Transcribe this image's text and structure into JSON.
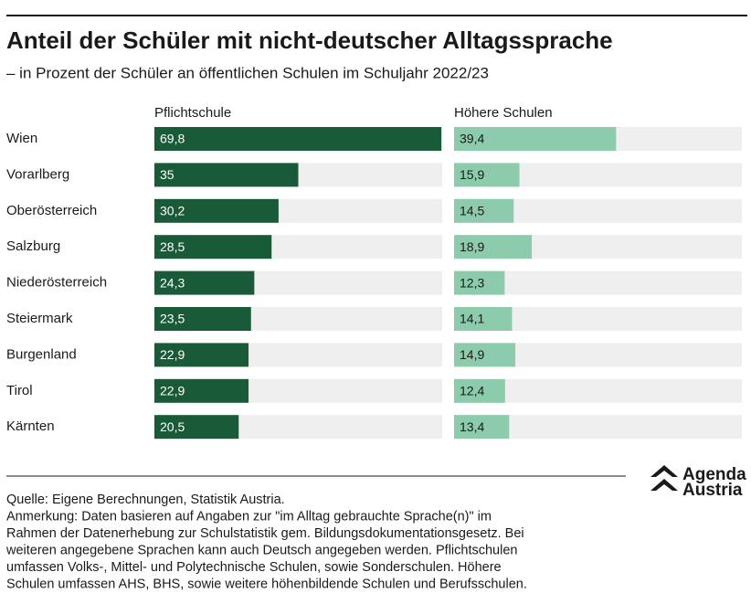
{
  "chart_data": {
    "type": "bar",
    "orientation": "horizontal",
    "title": "Anteil der Schüler mit nicht-deutscher Alltagssprache",
    "subtitle": "– in Prozent der Schüler an öffentlichen Schulen im Schuljahr 2022/23",
    "categories": [
      "Wien",
      "Vorarlberg",
      "Oberösterreich",
      "Salzburg",
      "Niederösterreich",
      "Steiermark",
      "Burgenland",
      "Tirol",
      "Kärnten"
    ],
    "series": [
      {
        "name": "Pflichtschule",
        "color": "#195b38",
        "values": [
          69.8,
          35,
          30.2,
          28.5,
          24.3,
          23.5,
          22.9,
          22.9,
          20.5
        ],
        "value_labels": [
          "69,8",
          "35",
          "30,2",
          "28,5",
          "24,3",
          "23,5",
          "22,9",
          "22,9",
          "20,5"
        ]
      },
      {
        "name": "Höhere Schulen",
        "color": "#8ccbab",
        "values": [
          39.4,
          15.9,
          14.5,
          18.9,
          12.3,
          14.1,
          14.9,
          12.4,
          13.4
        ],
        "value_labels": [
          "39,4",
          "15,9",
          "14,5",
          "18,9",
          "12,3",
          "14,1",
          "14,9",
          "12,4",
          "13,4"
        ]
      }
    ],
    "xlim": [
      0,
      70
    ]
  },
  "footer": {
    "source": "Quelle: Eigene Berechnungen, Statistik Austria.",
    "notes": [
      "Anmerkung: Daten basieren auf Angaben zur \"im Alltag gebrauchte Sprache(n)\" im",
      "Rahmen der Datenerhebung zur Schulstatistik gem. Bildungsdokumentationsgesetz. Bei",
      "weiteren angegebene Sprachen kann auch Deutsch angegeben werden. Pflichtschulen",
      "umfassen Volks-, Mittel- und Polytechnische Schulen, sowie Sonderschulen. Höhere",
      "Schulen umfassen AHS, BHS, sowie weitere höhenbildende Schulen und Berufsschulen."
    ]
  },
  "logo": {
    "line1": "Agenda",
    "line2": "Austria"
  }
}
